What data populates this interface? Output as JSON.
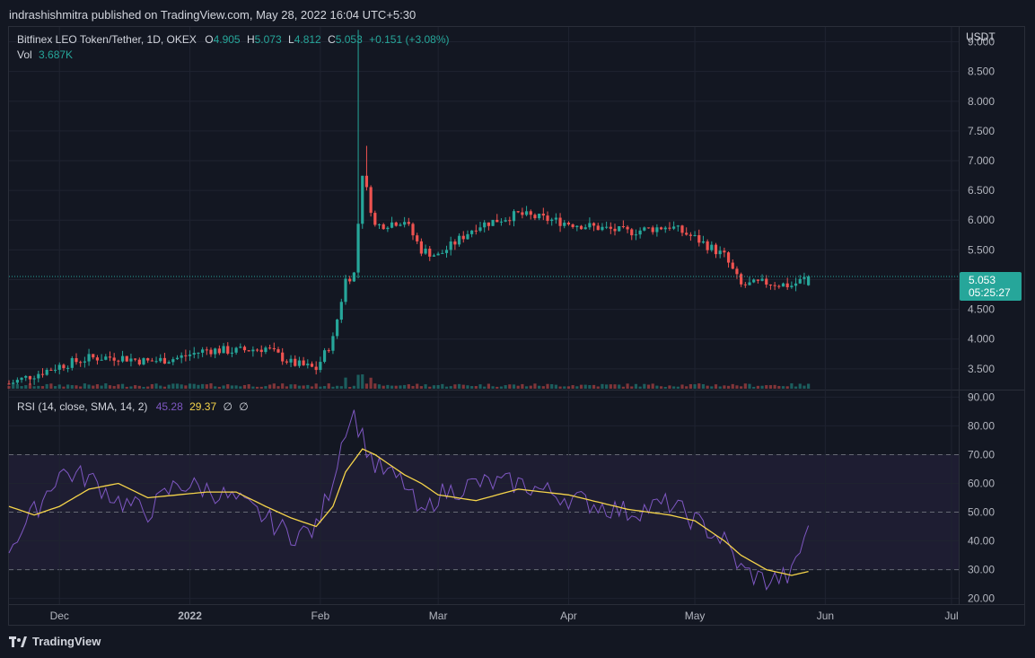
{
  "header": {
    "published": "indrashishmitra published on TradingView.com, May 28, 2022 16:04 UTC+5:30"
  },
  "legend": {
    "symbol": "Bitfinex LEO Token/Tether, 1D, OKEX",
    "o_label": "O",
    "o": "4.905",
    "h_label": "H",
    "h": "5.073",
    "l_label": "L",
    "l": "4.812",
    "c_label": "C",
    "c": "5.053",
    "change": "+0.151 (+3.08%)",
    "vol_label": "Vol",
    "vol": "3.687K"
  },
  "rsi_legend": {
    "label": "RSI (14, close, SMA, 14, 2)",
    "rsi": "45.28",
    "sma": "29.37",
    "extra1": "∅",
    "extra2": "∅"
  },
  "price_badge": {
    "price": "5.053",
    "countdown": "05:25:27"
  },
  "currency": "USDT",
  "brand": {
    "name": "TradingView",
    "icon": "tradingview-logo-icon"
  },
  "colors": {
    "up": "#26a69a",
    "down": "#ef5350",
    "rsi": "#7e57c2",
    "sma": "#f5d44a",
    "badge": "#26a69a"
  },
  "chart_data": [
    {
      "type": "candlestick",
      "title": "Bitfinex LEO Token/Tether, 1D, OKEX",
      "ylabel": "USDT",
      "ylim": [
        3.15,
        9.25
      ],
      "yticks": [
        "9.000",
        "8.500",
        "8.000",
        "7.500",
        "7.000",
        "6.500",
        "6.000",
        "5.500",
        "5.000",
        "4.500",
        "4.000",
        "3.500"
      ],
      "xticks": [
        "Dec",
        "2022",
        "Feb",
        "Mar",
        "Apr",
        "May",
        "Jun",
        "Jul"
      ],
      "grid": true,
      "last_price": 5.053,
      "close_series_approx": [
        {
          "date": "2021-11-19",
          "close": 3.25
        },
        {
          "date": "2021-11-25",
          "close": 3.4
        },
        {
          "date": "2021-12-01",
          "close": 3.55
        },
        {
          "date": "2021-12-08",
          "close": 3.68
        },
        {
          "date": "2021-12-15",
          "close": 3.7
        },
        {
          "date": "2021-12-22",
          "close": 3.62
        },
        {
          "date": "2021-12-29",
          "close": 3.68
        },
        {
          "date": "2022-01-05",
          "close": 3.82
        },
        {
          "date": "2022-01-12",
          "close": 3.8
        },
        {
          "date": "2022-01-19",
          "close": 3.85
        },
        {
          "date": "2022-01-25",
          "close": 3.6
        },
        {
          "date": "2022-01-31",
          "close": 3.5
        },
        {
          "date": "2022-02-04",
          "close": 4.0
        },
        {
          "date": "2022-02-07",
          "close": 5.0
        },
        {
          "date": "2022-02-09",
          "close": 5.1
        },
        {
          "date": "2022-02-11",
          "close": 6.8
        },
        {
          "date": "2022-02-14",
          "close": 5.9
        },
        {
          "date": "2022-02-21",
          "close": 6.0
        },
        {
          "date": "2022-02-25",
          "close": 5.5
        },
        {
          "date": "2022-03-01",
          "close": 5.4
        },
        {
          "date": "2022-03-10",
          "close": 5.9
        },
        {
          "date": "2022-03-20",
          "close": 6.1
        },
        {
          "date": "2022-04-01",
          "close": 5.95
        },
        {
          "date": "2022-04-15",
          "close": 5.8
        },
        {
          "date": "2022-04-25",
          "close": 5.9
        },
        {
          "date": "2022-05-01",
          "close": 5.7
        },
        {
          "date": "2022-05-08",
          "close": 5.4
        },
        {
          "date": "2022-05-12",
          "close": 4.9
        },
        {
          "date": "2022-05-18",
          "close": 4.95
        },
        {
          "date": "2022-05-24",
          "close": 4.9
        },
        {
          "date": "2022-05-28",
          "close": 5.053
        }
      ]
    },
    {
      "type": "line",
      "title": "RSI (14, close, SMA, 14, 2)",
      "ylim": [
        18,
        92
      ],
      "yticks": [
        "90.00",
        "80.00",
        "70.00",
        "60.00",
        "50.00",
        "40.00",
        "30.00",
        "20.00"
      ],
      "bands": [
        30,
        50,
        70
      ],
      "series": [
        {
          "name": "RSI",
          "values": [
            {
              "date": "2021-11-19",
              "v": 38
            },
            {
              "date": "2021-11-25",
              "v": 50
            },
            {
              "date": "2021-12-01",
              "v": 64
            },
            {
              "date": "2021-12-08",
              "v": 62
            },
            {
              "date": "2021-12-15",
              "v": 54
            },
            {
              "date": "2021-12-22",
              "v": 50
            },
            {
              "date": "2021-12-29",
              "v": 60
            },
            {
              "date": "2022-01-05",
              "v": 58
            },
            {
              "date": "2022-01-12",
              "v": 54
            },
            {
              "date": "2022-01-19",
              "v": 48
            },
            {
              "date": "2022-01-25",
              "v": 42
            },
            {
              "date": "2022-01-31",
              "v": 44
            },
            {
              "date": "2022-02-04",
              "v": 62
            },
            {
              "date": "2022-02-07",
              "v": 80
            },
            {
              "date": "2022-02-09",
              "v": 84
            },
            {
              "date": "2022-02-11",
              "v": 76
            },
            {
              "date": "2022-02-14",
              "v": 66
            },
            {
              "date": "2022-02-21",
              "v": 60
            },
            {
              "date": "2022-02-25",
              "v": 48
            },
            {
              "date": "2022-03-01",
              "v": 56
            },
            {
              "date": "2022-03-10",
              "v": 60
            },
            {
              "date": "2022-03-20",
              "v": 60
            },
            {
              "date": "2022-04-01",
              "v": 55
            },
            {
              "date": "2022-04-15",
              "v": 50
            },
            {
              "date": "2022-04-25",
              "v": 53
            },
            {
              "date": "2022-05-01",
              "v": 47
            },
            {
              "date": "2022-05-08",
              "v": 40
            },
            {
              "date": "2022-05-12",
              "v": 30
            },
            {
              "date": "2022-05-18",
              "v": 26
            },
            {
              "date": "2022-05-24",
              "v": 28
            },
            {
              "date": "2022-05-28",
              "v": 45.28
            }
          ]
        },
        {
          "name": "SMA",
          "values": [
            {
              "date": "2021-11-19",
              "v": 52
            },
            {
              "date": "2021-11-25",
              "v": 49
            },
            {
              "date": "2021-12-01",
              "v": 52
            },
            {
              "date": "2021-12-08",
              "v": 58
            },
            {
              "date": "2021-12-15",
              "v": 60
            },
            {
              "date": "2021-12-22",
              "v": 55
            },
            {
              "date": "2021-12-29",
              "v": 56
            },
            {
              "date": "2022-01-05",
              "v": 57
            },
            {
              "date": "2022-01-12",
              "v": 57
            },
            {
              "date": "2022-01-19",
              "v": 52
            },
            {
              "date": "2022-01-25",
              "v": 48
            },
            {
              "date": "2022-01-31",
              "v": 45
            },
            {
              "date": "2022-02-04",
              "v": 52
            },
            {
              "date": "2022-02-07",
              "v": 64
            },
            {
              "date": "2022-02-11",
              "v": 72
            },
            {
              "date": "2022-02-14",
              "v": 70
            },
            {
              "date": "2022-02-21",
              "v": 63
            },
            {
              "date": "2022-02-25",
              "v": 60
            },
            {
              "date": "2022-03-01",
              "v": 56
            },
            {
              "date": "2022-03-10",
              "v": 54
            },
            {
              "date": "2022-03-20",
              "v": 58
            },
            {
              "date": "2022-04-01",
              "v": 56
            },
            {
              "date": "2022-04-15",
              "v": 51
            },
            {
              "date": "2022-04-25",
              "v": 49
            },
            {
              "date": "2022-05-01",
              "v": 47
            },
            {
              "date": "2022-05-08",
              "v": 40
            },
            {
              "date": "2022-05-12",
              "v": 35
            },
            {
              "date": "2022-05-18",
              "v": 30
            },
            {
              "date": "2022-05-24",
              "v": 28
            },
            {
              "date": "2022-05-28",
              "v": 29.37
            }
          ]
        }
      ]
    }
  ]
}
